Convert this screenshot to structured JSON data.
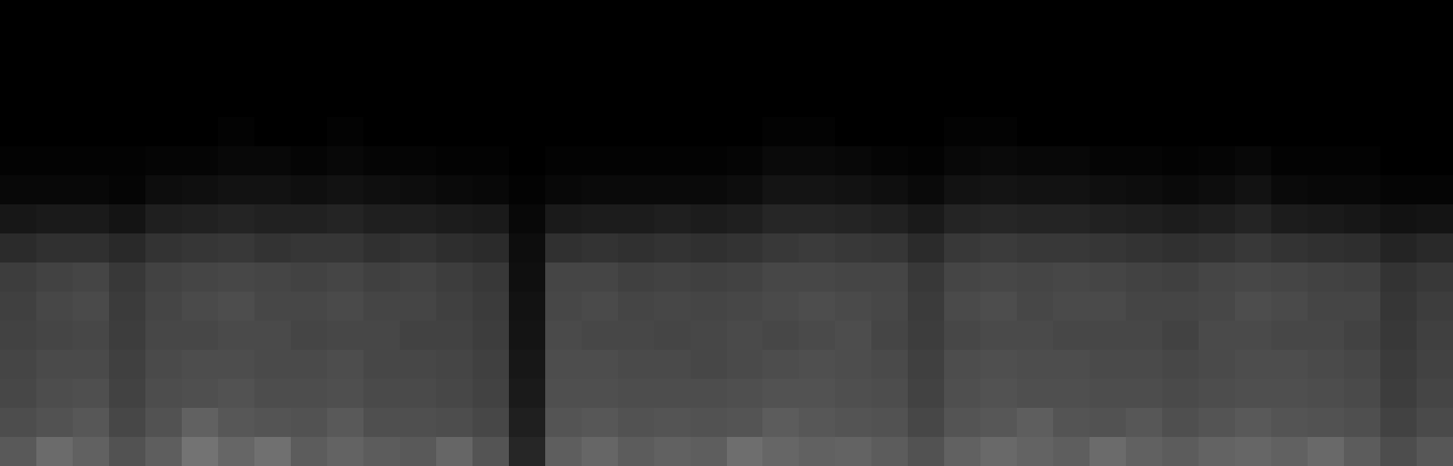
{
  "chart_data": {
    "type": "heatmap",
    "tick_labels": false,
    "zlim": [
      0,
      1
    ],
    "cells": [
      [
        0,
        0,
        0,
        0,
        0,
        0,
        0,
        0,
        0,
        0,
        0,
        0,
        0,
        0,
        0,
        0,
        0,
        0,
        0,
        0,
        0,
        0,
        0,
        0,
        0,
        0,
        0,
        0,
        0,
        0,
        0,
        0,
        0,
        0,
        0,
        0,
        0,
        0,
        0,
        0
      ],
      [
        0,
        0,
        0,
        0,
        0,
        0,
        0,
        0,
        0,
        0,
        0,
        0,
        0,
        0,
        0,
        0,
        0,
        0,
        0,
        0,
        0,
        0,
        0,
        0,
        0,
        0,
        0,
        0,
        0,
        0,
        0,
        0,
        0,
        0,
        0,
        0,
        0,
        0,
        0,
        0
      ],
      [
        0,
        0,
        0,
        0,
        0,
        0,
        0,
        0,
        0,
        0,
        0,
        0,
        0,
        0,
        0,
        0,
        0,
        0,
        0,
        0,
        0,
        0,
        0,
        0,
        0,
        0,
        0,
        0,
        0,
        0,
        0,
        0,
        0,
        0,
        0,
        0,
        0,
        0,
        0,
        0
      ],
      [
        0,
        0,
        0,
        0,
        0,
        0,
        0,
        0,
        0,
        0,
        0,
        0,
        0,
        0,
        0,
        0,
        0,
        0,
        0,
        0,
        0,
        0,
        0,
        0,
        0,
        0,
        0,
        0,
        0,
        0,
        0,
        0,
        0,
        0,
        0,
        0,
        0,
        0,
        0,
        0
      ],
      [
        0,
        0,
        0,
        0,
        0,
        0,
        0.01,
        0,
        0,
        0.01,
        0,
        0,
        0,
        0,
        0,
        0,
        0,
        0,
        0,
        0,
        0,
        0.01,
        0.01,
        0,
        0,
        0,
        0.01,
        0.01,
        0,
        0,
        0,
        0,
        0,
        0,
        0,
        0,
        0,
        0,
        0,
        0
      ],
      [
        0.01,
        0.01,
        0.01,
        0.01,
        0.02,
        0.02,
        0.03,
        0.03,
        0.02,
        0.03,
        0.02,
        0.02,
        0.01,
        0.01,
        0,
        0.01,
        0.01,
        0.01,
        0.01,
        0.01,
        0.02,
        0.04,
        0.04,
        0.03,
        0.02,
        0.01,
        0.03,
        0.04,
        0.03,
        0.03,
        0.02,
        0.02,
        0.01,
        0.02,
        0.03,
        0.01,
        0.01,
        0.01,
        0,
        0
      ],
      [
        0.03,
        0.03,
        0.03,
        0.02,
        0.05,
        0.06,
        0.07,
        0.07,
        0.06,
        0.07,
        0.06,
        0.05,
        0.04,
        0.03,
        0.01,
        0.03,
        0.04,
        0.04,
        0.04,
        0.04,
        0.05,
        0.08,
        0.08,
        0.07,
        0.06,
        0.04,
        0.07,
        0.08,
        0.07,
        0.07,
        0.06,
        0.05,
        0.04,
        0.05,
        0.07,
        0.04,
        0.03,
        0.03,
        0.02,
        0.02
      ],
      [
        0.09,
        0.1,
        0.1,
        0.08,
        0.12,
        0.13,
        0.14,
        0.13,
        0.13,
        0.14,
        0.12,
        0.12,
        0.11,
        0.1,
        0.03,
        0.1,
        0.11,
        0.11,
        0.12,
        0.11,
        0.12,
        0.15,
        0.15,
        0.14,
        0.13,
        0.1,
        0.14,
        0.15,
        0.14,
        0.14,
        0.13,
        0.12,
        0.11,
        0.12,
        0.14,
        0.11,
        0.1,
        0.09,
        0.07,
        0.08
      ],
      [
        0.17,
        0.19,
        0.19,
        0.16,
        0.2,
        0.21,
        0.22,
        0.2,
        0.21,
        0.21,
        0.19,
        0.2,
        0.18,
        0.17,
        0.05,
        0.19,
        0.2,
        0.19,
        0.2,
        0.19,
        0.2,
        0.22,
        0.23,
        0.22,
        0.21,
        0.17,
        0.22,
        0.23,
        0.22,
        0.22,
        0.21,
        0.2,
        0.19,
        0.2,
        0.22,
        0.2,
        0.19,
        0.18,
        0.14,
        0.16
      ],
      [
        0.24,
        0.26,
        0.27,
        0.22,
        0.26,
        0.27,
        0.28,
        0.27,
        0.26,
        0.27,
        0.25,
        0.26,
        0.24,
        0.22,
        0.06,
        0.27,
        0.27,
        0.25,
        0.26,
        0.25,
        0.26,
        0.28,
        0.28,
        0.27,
        0.27,
        0.22,
        0.27,
        0.28,
        0.27,
        0.28,
        0.27,
        0.26,
        0.25,
        0.27,
        0.28,
        0.27,
        0.26,
        0.25,
        0.2,
        0.22
      ],
      [
        0.25,
        0.28,
        0.29,
        0.23,
        0.27,
        0.29,
        0.3,
        0.28,
        0.28,
        0.29,
        0.27,
        0.27,
        0.25,
        0.23,
        0.07,
        0.28,
        0.29,
        0.27,
        0.28,
        0.27,
        0.28,
        0.29,
        0.3,
        0.29,
        0.28,
        0.23,
        0.29,
        0.3,
        0.28,
        0.29,
        0.29,
        0.27,
        0.27,
        0.28,
        0.3,
        0.29,
        0.27,
        0.27,
        0.21,
        0.24
      ],
      [
        0.26,
        0.27,
        0.28,
        0.24,
        0.28,
        0.28,
        0.29,
        0.29,
        0.27,
        0.28,
        0.28,
        0.26,
        0.26,
        0.24,
        0.08,
        0.29,
        0.28,
        0.28,
        0.27,
        0.28,
        0.29,
        0.28,
        0.29,
        0.3,
        0.27,
        0.24,
        0.28,
        0.29,
        0.29,
        0.28,
        0.28,
        0.28,
        0.26,
        0.29,
        0.29,
        0.28,
        0.28,
        0.26,
        0.22,
        0.25
      ],
      [
        0.27,
        0.29,
        0.29,
        0.25,
        0.29,
        0.3,
        0.3,
        0.29,
        0.29,
        0.3,
        0.28,
        0.28,
        0.27,
        0.25,
        0.09,
        0.3,
        0.3,
        0.29,
        0.29,
        0.28,
        0.29,
        0.3,
        0.31,
        0.3,
        0.29,
        0.25,
        0.3,
        0.31,
        0.3,
        0.3,
        0.29,
        0.29,
        0.28,
        0.29,
        0.3,
        0.3,
        0.29,
        0.28,
        0.23,
        0.26
      ],
      [
        0.28,
        0.3,
        0.31,
        0.26,
        0.3,
        0.31,
        0.32,
        0.3,
        0.3,
        0.31,
        0.29,
        0.29,
        0.28,
        0.26,
        0.1,
        0.31,
        0.31,
        0.3,
        0.3,
        0.3,
        0.31,
        0.32,
        0.32,
        0.31,
        0.3,
        0.26,
        0.31,
        0.32,
        0.31,
        0.31,
        0.3,
        0.3,
        0.29,
        0.3,
        0.31,
        0.31,
        0.3,
        0.29,
        0.24,
        0.27
      ],
      [
        0.3,
        0.32,
        0.34,
        0.28,
        0.32,
        0.38,
        0.34,
        0.33,
        0.32,
        0.35,
        0.31,
        0.31,
        0.3,
        0.28,
        0.12,
        0.33,
        0.34,
        0.32,
        0.33,
        0.32,
        0.33,
        0.36,
        0.34,
        0.33,
        0.32,
        0.28,
        0.33,
        0.34,
        0.37,
        0.33,
        0.32,
        0.34,
        0.31,
        0.33,
        0.35,
        0.33,
        0.32,
        0.31,
        0.26,
        0.29
      ],
      [
        0.35,
        0.42,
        0.38,
        0.32,
        0.37,
        0.45,
        0.4,
        0.44,
        0.36,
        0.39,
        0.36,
        0.35,
        0.4,
        0.33,
        0.15,
        0.37,
        0.4,
        0.36,
        0.38,
        0.37,
        0.43,
        0.4,
        0.38,
        0.39,
        0.36,
        0.32,
        0.38,
        0.41,
        0.39,
        0.37,
        0.42,
        0.38,
        0.36,
        0.39,
        0.4,
        0.38,
        0.41,
        0.36,
        0.3,
        0.34
      ]
    ]
  }
}
